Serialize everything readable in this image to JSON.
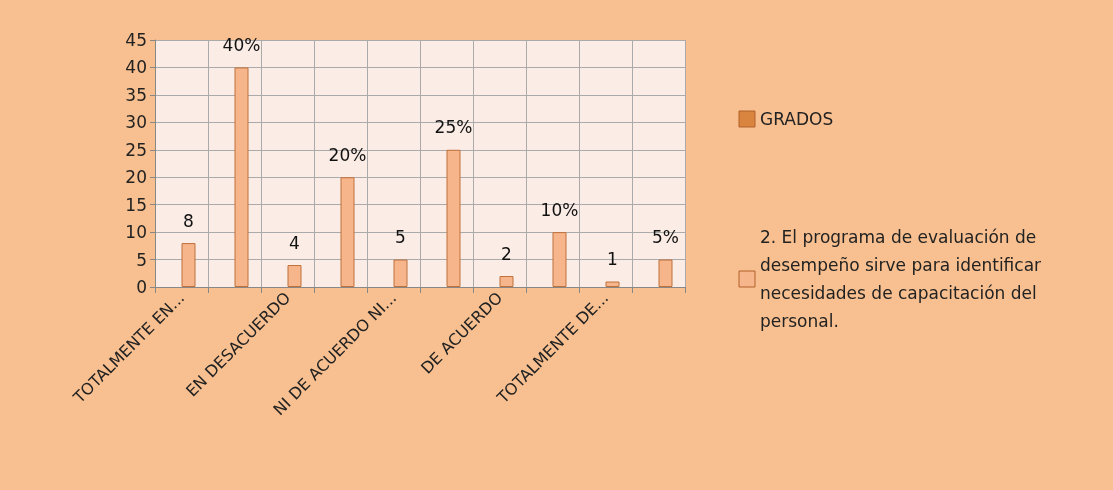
{
  "chart_data": {
    "type": "bar",
    "categories": [
      "TOTALMENTE EN...",
      null,
      "EN DESACUERDO",
      null,
      "NI DE ACUERDO NI...",
      null,
      "DE ACUERDO",
      null,
      "TOTALMENTE DE...",
      null
    ],
    "series": [
      {
        "name": "GRADOS",
        "color": "#d9843f",
        "values": [
          null,
          null,
          null,
          null,
          null,
          null,
          null,
          null,
          null,
          null
        ]
      },
      {
        "name": "2. El programa de evaluación de desempeño sirve para identificar necesidades de capacitación del personal.",
        "color": "#f7b58c",
        "values": [
          8,
          40,
          4,
          20,
          5,
          25,
          2,
          10,
          1,
          5
        ],
        "value_labels": [
          "8",
          "40%",
          "4",
          "20%",
          "5",
          "25%",
          "2",
          "10%",
          "1",
          "5%"
        ]
      }
    ],
    "ylim": [
      0,
      45
    ],
    "yticks": [
      0,
      5,
      10,
      15,
      20,
      25,
      30,
      35,
      40,
      45
    ],
    "grid": true,
    "legend": "right"
  }
}
